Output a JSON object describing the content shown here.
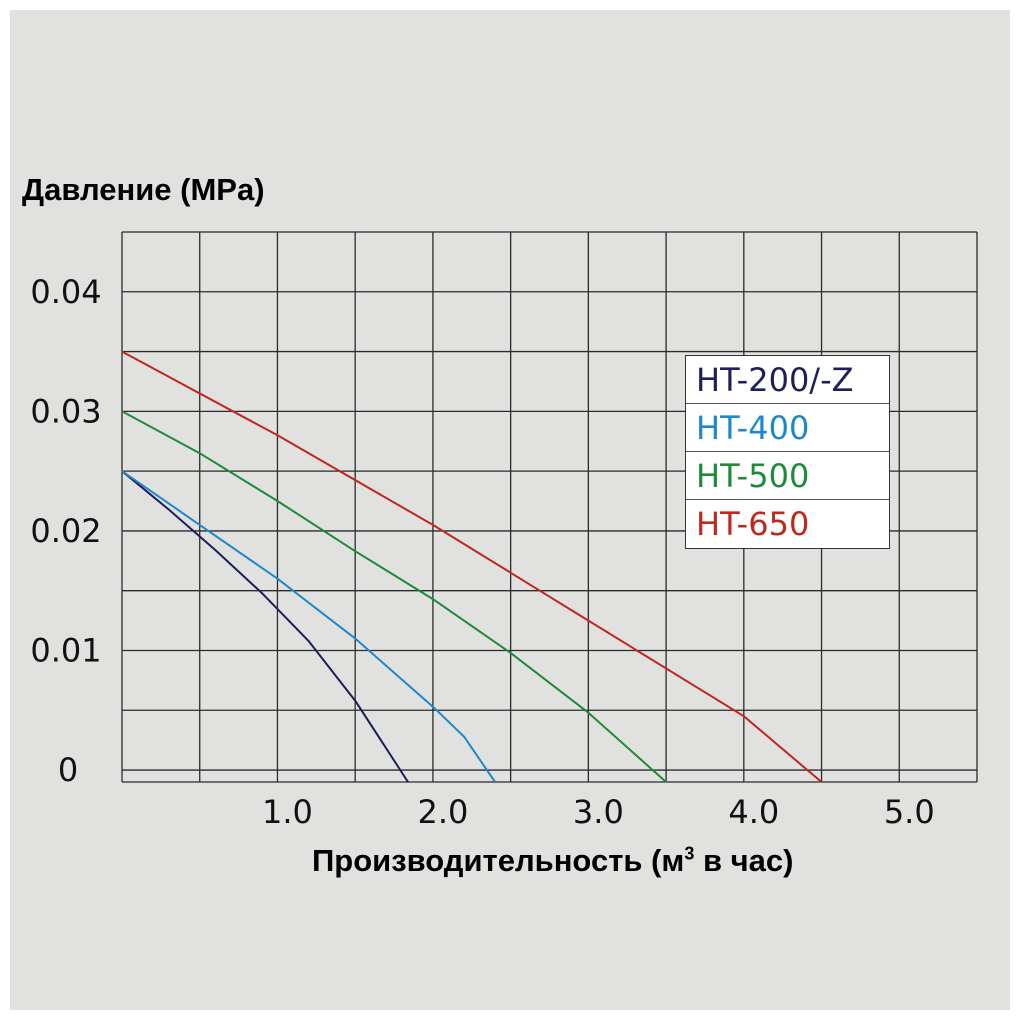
{
  "colors": {
    "background": "#e1e1df",
    "grid": "#2b2b2b",
    "series": [
      "#1c1f5a",
      "#1e88c9",
      "#1e8a3a",
      "#c0281e"
    ]
  },
  "chart_data": {
    "type": "line",
    "title": "",
    "ylabel": "Давление (MPa)",
    "xlabel_main": "Производительность (м",
    "xlabel_sup": "3",
    "xlabel_tail": " в час)",
    "xlim": [
      0,
      5.5
    ],
    "ylim": [
      -0.001,
      0.045
    ],
    "x_ticks": [
      "1.0",
      "2.0",
      "3.0",
      "4.0",
      "5.0"
    ],
    "x_tick_values": [
      1,
      2,
      3,
      4,
      5
    ],
    "y_ticks": [
      "0.04",
      "0.03",
      "0.02",
      "0.01",
      "0"
    ],
    "y_tick_values": [
      0.04,
      0.03,
      0.02,
      0.01,
      0
    ],
    "grid": true,
    "grid_x_step": 0.5,
    "grid_y_step": 0.005,
    "legend_position": "right",
    "series": [
      {
        "name": "HT-200/-Z",
        "points": [
          [
            0,
            0.025
          ],
          [
            0.3,
            0.0218
          ],
          [
            0.6,
            0.0184
          ],
          [
            0.9,
            0.0148
          ],
          [
            1.2,
            0.0108
          ],
          [
            1.5,
            0.0058
          ],
          [
            1.7,
            0.0018
          ],
          [
            1.84,
            -0.001
          ]
        ]
      },
      {
        "name": "HT-400",
        "points": [
          [
            0,
            0.025
          ],
          [
            0.5,
            0.0205
          ],
          [
            1.0,
            0.016
          ],
          [
            1.5,
            0.011
          ],
          [
            2.0,
            0.0053
          ],
          [
            2.2,
            0.0028
          ],
          [
            2.4,
            -0.001
          ]
        ]
      },
      {
        "name": "HT-500",
        "points": [
          [
            0,
            0.03
          ],
          [
            0.5,
            0.0265
          ],
          [
            1.0,
            0.0225
          ],
          [
            1.5,
            0.0183
          ],
          [
            2.0,
            0.0143
          ],
          [
            2.5,
            0.0098
          ],
          [
            3.0,
            0.0048
          ],
          [
            3.5,
            -0.001
          ]
        ]
      },
      {
        "name": "HT-650",
        "points": [
          [
            0,
            0.035
          ],
          [
            1.0,
            0.028
          ],
          [
            2.0,
            0.0205
          ],
          [
            3.0,
            0.0125
          ],
          [
            4.0,
            0.0045
          ],
          [
            4.5,
            -0.001
          ]
        ]
      }
    ]
  }
}
